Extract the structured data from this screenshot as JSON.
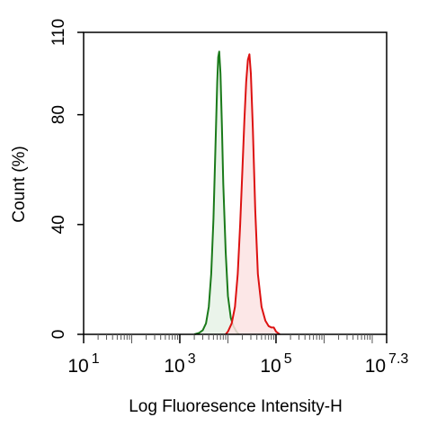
{
  "chart_data": {
    "type": "area",
    "title": "",
    "xlabel": "Log Fluoresence Intensity-H",
    "ylabel": "Count  (%)",
    "x_scale": "log",
    "xlim": [
      10,
      19952623
    ],
    "ylim": [
      0,
      110
    ],
    "x_ticks": [
      {
        "value": 10,
        "base": "10",
        "exp": "1"
      },
      {
        "value": 1000,
        "base": "10",
        "exp": "3"
      },
      {
        "value": 100000,
        "base": "10",
        "exp": "5"
      },
      {
        "value": 19952623,
        "base": "10",
        "exp": "7.3"
      }
    ],
    "y_ticks": [
      {
        "value": 0,
        "label": "0"
      },
      {
        "value": 40,
        "label": "40"
      },
      {
        "value": 80,
        "label": "80"
      },
      {
        "value": 110,
        "label": "110"
      }
    ],
    "grid": false,
    "legend": "none",
    "series": [
      {
        "color": "#1a7a1a",
        "fill": "#e6f2e6",
        "x": [
          2000,
          2500,
          3000,
          3500,
          4000,
          4500,
          5000,
          5500,
          6000,
          6300,
          6600,
          7000,
          7500,
          8000,
          9000,
          10000,
          11500,
          13000,
          15000,
          17000
        ],
        "y": [
          0,
          0.5,
          1.5,
          4,
          10,
          22,
          42,
          68,
          92,
          101,
          103,
          95,
          76,
          55,
          30,
          14,
          6,
          3,
          1,
          0
        ]
      },
      {
        "color": "#dd1111",
        "fill": "#fce3e3",
        "x": [
          9000,
          10000,
          12000,
          14000,
          16000,
          18000,
          20000,
          22000,
          24000,
          26000,
          28000,
          30000,
          33000,
          37000,
          42000,
          50000,
          60000,
          70000,
          80000,
          90000,
          100000,
          120000
        ],
        "y": [
          0,
          1,
          4,
          10,
          22,
          40,
          60,
          78,
          92,
          100,
          102,
          95,
          75,
          45,
          22,
          10,
          5,
          3,
          2.5,
          2.5,
          1,
          0
        ]
      }
    ]
  }
}
